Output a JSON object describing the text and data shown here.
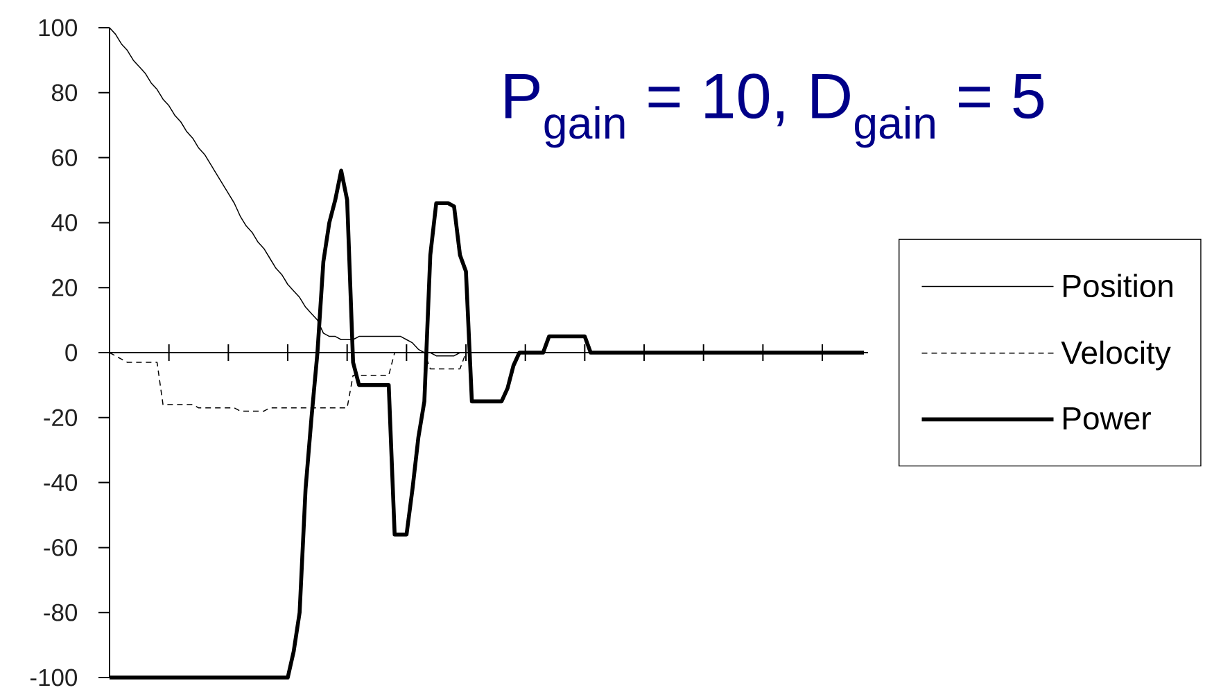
{
  "chart_data": {
    "type": "line",
    "title": "P$_{gain}$ = 10, D$_{gain}$ = 5",
    "categories": [
      null,
      null,
      null,
      null,
      null,
      null,
      null,
      null,
      null,
      null,
      null,
      null,
      null,
      null,
      null,
      null,
      null,
      null,
      null,
      null,
      null,
      null,
      null,
      null,
      null,
      null,
      null,
      null,
      null,
      null,
      null,
      null,
      null,
      null,
      null,
      null,
      null,
      null,
      null,
      null,
      null,
      null,
      null,
      null,
      null,
      null,
      null,
      null,
      null,
      null,
      null,
      null,
      null,
      null,
      null,
      null,
      null,
      null,
      null,
      null,
      null,
      null,
      null,
      null,
      null,
      null,
      null,
      null,
      null,
      null,
      null,
      null,
      null,
      null,
      null,
      null,
      null,
      null,
      null,
      null,
      null,
      null,
      null,
      null,
      null,
      null,
      null,
      null,
      null,
      null,
      null,
      null,
      null,
      null,
      null,
      null,
      null,
      null,
      null,
      null,
      null,
      null,
      null,
      null,
      null,
      null,
      null,
      null,
      null,
      null,
      null,
      null,
      null,
      null,
      null,
      null,
      null,
      null,
      null,
      null,
      null,
      null,
      null,
      null,
      null,
      null,
      null,
      null
    ],
    "series": [
      {
        "name": "Position",
        "color": "#000000",
        "line_style": "solid",
        "values": [
          100,
          98,
          95,
          93,
          90,
          88,
          86,
          83,
          81,
          78,
          76,
          73,
          71,
          68,
          66,
          63,
          61,
          58,
          55,
          52,
          49,
          46,
          42,
          39,
          37,
          34,
          32,
          29,
          26,
          24,
          21,
          19,
          17,
          14,
          12,
          10,
          6,
          5,
          5,
          4,
          4,
          4,
          5,
          5,
          5,
          5,
          5,
          5,
          5,
          5,
          4,
          3,
          1,
          0,
          0,
          -1,
          -1,
          -1,
          -1,
          0,
          0,
          0,
          0,
          0,
          0,
          0,
          0,
          0,
          0,
          0,
          0,
          0,
          0,
          0,
          0,
          0,
          0,
          0,
          0,
          0,
          0,
          0,
          0,
          0,
          0,
          0,
          0,
          0,
          0,
          0,
          0,
          0,
          0,
          0,
          0,
          0,
          0,
          0,
          0,
          0,
          0,
          0,
          0,
          0,
          0,
          0,
          0,
          0,
          0,
          0,
          0,
          0,
          0,
          0,
          0,
          0,
          0,
          0,
          0,
          0,
          0,
          0,
          0,
          0,
          0,
          0,
          0,
          0
        ]
      },
      {
        "name": "Velocity",
        "color": "#000000",
        "line_style": "dashed",
        "values": [
          0,
          -1,
          -2,
          -3,
          -3,
          -3,
          -3,
          -3,
          -3,
          -16,
          -16,
          -16,
          -16,
          -16,
          -16,
          -17,
          -17,
          -17,
          -17,
          -17,
          -17,
          -17,
          -18,
          -18,
          -18,
          -18,
          -18,
          -17,
          -17,
          -17,
          -17,
          -17,
          -17,
          -17,
          -17,
          -17,
          -17,
          -17,
          -17,
          -17,
          -17,
          -7,
          -7,
          -7,
          -7,
          -7,
          -7,
          -7,
          0,
          0,
          0,
          0,
          0,
          0,
          -5,
          -5,
          -5,
          -5,
          -5,
          -5,
          0,
          0,
          0,
          0,
          0,
          0,
          0,
          0,
          0,
          0,
          0,
          0,
          0,
          0,
          0,
          0,
          0,
          0,
          0,
          0,
          0,
          0,
          0,
          0,
          0,
          0,
          0,
          0,
          0,
          0,
          0,
          0,
          0,
          0,
          0,
          0,
          0,
          0,
          0,
          0,
          0,
          0,
          0,
          0,
          0,
          0,
          0,
          0,
          0,
          0,
          0,
          0,
          0,
          0,
          0,
          0,
          0,
          0,
          0,
          0,
          0,
          0,
          0,
          0,
          0,
          0,
          0,
          0
        ]
      },
      {
        "name": "Power",
        "color": "#000000",
        "line_style": "solid",
        "values": [
          -100,
          -100,
          -100,
          -100,
          -100,
          -100,
          -100,
          -100,
          -100,
          -100,
          -100,
          -100,
          -100,
          -100,
          -100,
          -100,
          -100,
          -100,
          -100,
          -100,
          -100,
          -100,
          -100,
          -100,
          -100,
          -100,
          -100,
          -100,
          -100,
          -100,
          -100,
          -92,
          -80,
          -42,
          -20,
          0,
          28,
          40,
          47,
          56,
          47,
          -3,
          -10,
          -10,
          -10,
          -10,
          -10,
          -10,
          -56,
          -56,
          -56,
          -42,
          -26,
          -15,
          30,
          46,
          46,
          46,
          45,
          30,
          25,
          -15,
          -15,
          -15,
          -15,
          -15,
          -15,
          -11,
          -4,
          0,
          0,
          0,
          0,
          0,
          5,
          5,
          5,
          5,
          5,
          5,
          5,
          0,
          0,
          0,
          0,
          0,
          0,
          0,
          0,
          0,
          0,
          0,
          0,
          0,
          0,
          0,
          0,
          0,
          0,
          0,
          0,
          0,
          0,
          0,
          0,
          0,
          0,
          0,
          0,
          0,
          0,
          0,
          0,
          0,
          0,
          0,
          0,
          0,
          0,
          0,
          0,
          0,
          0,
          0,
          0,
          0,
          0,
          0
        ]
      }
    ],
    "ylim": [
      -100,
      100
    ],
    "yticks": [
      -100,
      -80,
      -60,
      -40,
      -20,
      0,
      20,
      40,
      60,
      80,
      100
    ],
    "tick_labels": "y",
    "legend": "right"
  }
}
